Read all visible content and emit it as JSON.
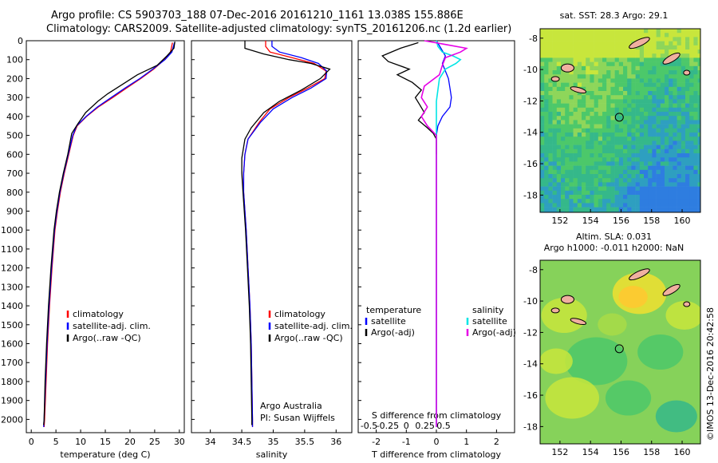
{
  "header": {
    "line1": "Argo profile: CS 5903703_188 07-Dec-2016 20161210_1161 13.038S 155.886E",
    "line2": "Climatology: CARS2009. Satellite-adjusted climatology: synTS_20161206.nc (1.2d earlier)"
  },
  "side_stamp": "©IMOS 13-Dec-2016 20:42:58",
  "colors": {
    "climatology": "#ff0000",
    "satellite": "#0000ff",
    "argo": "#000000",
    "sal_satellite": "#00e5e5",
    "sal_argo": "#e600e6"
  },
  "chart_data": [
    {
      "type": "line",
      "id": "temperature",
      "xlabel": "temperature (deg C)",
      "ylabel": "",
      "xlim": [
        -1,
        31
      ],
      "ylim": [
        2070,
        0
      ],
      "xticks": [
        0,
        5,
        10,
        15,
        20,
        25,
        30
      ],
      "yticks": [
        0,
        100,
        200,
        300,
        400,
        500,
        600,
        700,
        800,
        900,
        1000,
        1100,
        1200,
        1300,
        1400,
        1500,
        1600,
        1700,
        1800,
        1900,
        2000
      ],
      "legend": [
        "climatology",
        "satellite-adj. clim.",
        "Argo(..raw -QC)"
      ],
      "legend_position": "bottom-center",
      "series": [
        {
          "name": "climatology",
          "color": "#ff0000",
          "points": [
            [
              28.6,
              10
            ],
            [
              28.2,
              60
            ],
            [
              27.0,
              100
            ],
            [
              24.8,
              150
            ],
            [
              22.2,
              200
            ],
            [
              19.3,
              250
            ],
            [
              16.5,
              300
            ],
            [
              13.6,
              350
            ],
            [
              11.2,
              400
            ],
            [
              9.3,
              450
            ],
            [
              8.5,
              500
            ],
            [
              7.6,
              600
            ],
            [
              6.7,
              700
            ],
            [
              5.9,
              800
            ],
            [
              5.3,
              900
            ],
            [
              4.8,
              1000
            ],
            [
              4.2,
              1200
            ],
            [
              3.7,
              1400
            ],
            [
              3.3,
              1600
            ],
            [
              3.0,
              1800
            ],
            [
              2.7,
              2000
            ],
            [
              2.6,
              2040
            ]
          ]
        },
        {
          "name": "satellite-adj. clim.",
          "color": "#0000ff",
          "points": [
            [
              29.0,
              10
            ],
            [
              28.5,
              60
            ],
            [
              27.1,
              100
            ],
            [
              24.6,
              150
            ],
            [
              22.0,
              200
            ],
            [
              19.0,
              250
            ],
            [
              16.2,
              300
            ],
            [
              13.4,
              350
            ],
            [
              11.1,
              400
            ],
            [
              9.2,
              450
            ],
            [
              8.4,
              500
            ],
            [
              7.5,
              600
            ],
            [
              6.6,
              700
            ],
            [
              5.8,
              800
            ],
            [
              5.2,
              900
            ],
            [
              4.7,
              1000
            ],
            [
              4.1,
              1200
            ],
            [
              3.6,
              1400
            ],
            [
              3.2,
              1600
            ],
            [
              2.9,
              1800
            ],
            [
              2.6,
              2000
            ],
            [
              2.5,
              2040
            ]
          ]
        },
        {
          "name": "Argo(..raw -QC)",
          "color": "#000000",
          "points": [
            [
              29.1,
              5
            ],
            [
              28.9,
              40
            ],
            [
              27.5,
              80
            ],
            [
              25.5,
              130
            ],
            [
              21.5,
              180
            ],
            [
              18.5,
              230
            ],
            [
              15.5,
              280
            ],
            [
              13.5,
              320
            ],
            [
              11.0,
              380
            ],
            [
              9.4,
              440
            ],
            [
              8.2,
              490
            ],
            [
              7.4,
              600
            ],
            [
              6.5,
              700
            ],
            [
              5.7,
              800
            ],
            [
              5.1,
              900
            ],
            [
              4.6,
              1000
            ],
            [
              4.0,
              1200
            ],
            [
              3.5,
              1400
            ],
            [
              3.1,
              1600
            ],
            [
              2.8,
              1800
            ],
            [
              2.6,
              2000
            ],
            [
              2.5,
              2030
            ]
          ]
        }
      ]
    },
    {
      "type": "line",
      "id": "salinity",
      "xlabel": "salinity",
      "ylabel": "",
      "xlim": [
        33.7,
        36.25
      ],
      "ylim": [
        2070,
        0
      ],
      "xticks": [
        34,
        34.5,
        35,
        35.5,
        36
      ],
      "legend": [
        "climatology",
        "satellite-adj. clim.",
        "Argo(..raw -QC)"
      ],
      "legend_position": "bottom-right",
      "annotations": [
        "Argo Australia",
        "PI: Susan Wijffels"
      ],
      "series": [
        {
          "name": "climatology",
          "color": "#ff0000",
          "points": [
            [
              34.88,
              0
            ],
            [
              34.88,
              30
            ],
            [
              34.95,
              60
            ],
            [
              35.3,
              90
            ],
            [
              35.65,
              120
            ],
            [
              35.84,
              160
            ],
            [
              35.82,
              200
            ],
            [
              35.55,
              250
            ],
            [
              35.25,
              300
            ],
            [
              34.95,
              360
            ],
            [
              34.78,
              430
            ],
            [
              34.6,
              520
            ],
            [
              34.55,
              600
            ],
            [
              34.53,
              700
            ],
            [
              34.53,
              800
            ],
            [
              34.55,
              900
            ],
            [
              34.57,
              1000
            ],
            [
              34.6,
              1200
            ],
            [
              34.63,
              1400
            ],
            [
              34.65,
              1600
            ],
            [
              34.66,
              1800
            ],
            [
              34.67,
              2000
            ],
            [
              34.67,
              2040
            ]
          ]
        },
        {
          "name": "satellite-adj. clim.",
          "color": "#0000ff",
          "points": [
            [
              34.98,
              0
            ],
            [
              34.98,
              30
            ],
            [
              35.1,
              60
            ],
            [
              35.45,
              90
            ],
            [
              35.72,
              120
            ],
            [
              35.85,
              160
            ],
            [
              35.84,
              200
            ],
            [
              35.6,
              250
            ],
            [
              35.3,
              300
            ],
            [
              35.0,
              360
            ],
            [
              34.8,
              430
            ],
            [
              34.6,
              520
            ],
            [
              34.55,
              600
            ],
            [
              34.53,
              700
            ],
            [
              34.53,
              800
            ],
            [
              34.55,
              900
            ],
            [
              34.57,
              1000
            ],
            [
              34.6,
              1200
            ],
            [
              34.63,
              1400
            ],
            [
              34.65,
              1600
            ],
            [
              34.66,
              1800
            ],
            [
              34.67,
              2000
            ],
            [
              34.67,
              2040
            ]
          ]
        },
        {
          "name": "Argo(..raw -QC)",
          "color": "#000000",
          "points": [
            [
              34.55,
              0
            ],
            [
              34.55,
              40
            ],
            [
              34.85,
              70
            ],
            [
              35.25,
              100
            ],
            [
              35.6,
              120
            ],
            [
              35.9,
              150
            ],
            [
              35.75,
              200
            ],
            [
              35.45,
              260
            ],
            [
              35.1,
              320
            ],
            [
              34.85,
              380
            ],
            [
              34.65,
              460
            ],
            [
              34.55,
              520
            ],
            [
              34.5,
              620
            ],
            [
              34.5,
              700
            ],
            [
              34.52,
              800
            ],
            [
              34.54,
              900
            ],
            [
              34.56,
              1000
            ],
            [
              34.59,
              1200
            ],
            [
              34.62,
              1400
            ],
            [
              34.64,
              1600
            ],
            [
              34.65,
              1800
            ],
            [
              34.66,
              2000
            ],
            [
              34.66,
              2030
            ]
          ]
        }
      ]
    },
    {
      "type": "line",
      "id": "difference",
      "xlabel": "T difference from climatology",
      "xlabel_top": "S difference from climatology",
      "ylabel": "",
      "xlim": [
        -2.6,
        2.6
      ],
      "ylim": [
        2070,
        0
      ],
      "xticks": [
        -2,
        -1,
        0,
        1,
        2
      ],
      "xticks_top": [
        "-0.5",
        "-0.25",
        "0",
        "0.25",
        "0.5"
      ],
      "legend_headers": [
        "temperature",
        "salinity"
      ],
      "legend": [
        "satellite",
        "Argo(-adj)",
        "satellite",
        "Argo(-adj)"
      ],
      "legend_position": "bottom",
      "series": [
        {
          "name": "satellite",
          "group": "temperature",
          "color": "#0000ff",
          "points": [
            [
              0.0,
              0
            ],
            [
              0.15,
              40
            ],
            [
              0.3,
              80
            ],
            [
              0.2,
              120
            ],
            [
              0.3,
              160
            ],
            [
              0.4,
              200
            ],
            [
              0.45,
              250
            ],
            [
              0.5,
              300
            ],
            [
              0.45,
              350
            ],
            [
              0.2,
              400
            ],
            [
              0.05,
              450
            ],
            [
              0.0,
              500
            ],
            [
              0.0,
              600
            ],
            [
              0.0,
              1000
            ],
            [
              0.0,
              2040
            ]
          ]
        },
        {
          "name": "Argo(-adj)",
          "group": "temperature",
          "color": "#000000",
          "points": [
            [
              -0.6,
              10
            ],
            [
              -1.2,
              40
            ],
            [
              -1.8,
              80
            ],
            [
              -1.6,
              110
            ],
            [
              -0.9,
              150
            ],
            [
              -1.3,
              180
            ],
            [
              -0.8,
              220
            ],
            [
              -0.5,
              260
            ],
            [
              -0.7,
              300
            ],
            [
              -0.55,
              340
            ],
            [
              -0.4,
              380
            ],
            [
              -0.6,
              420
            ],
            [
              -0.3,
              460
            ],
            [
              -0.1,
              490
            ],
            [
              0.0,
              520
            ],
            [
              0.0,
              600
            ]
          ]
        },
        {
          "name": "satellite",
          "group": "salinity",
          "color": "#00e5e5",
          "points": [
            [
              0.0,
              0
            ],
            [
              0.05,
              30
            ],
            [
              0.2,
              60
            ],
            [
              0.55,
              80
            ],
            [
              0.8,
              100
            ],
            [
              0.65,
              120
            ],
            [
              0.3,
              150
            ],
            [
              0.1,
              200
            ],
            [
              0.05,
              260
            ],
            [
              0.0,
              320
            ],
            [
              0.0,
              600
            ],
            [
              0.0,
              2040
            ]
          ]
        },
        {
          "name": "Argo(-adj)",
          "group": "salinity",
          "color": "#e600e6",
          "points": [
            [
              -0.4,
              0
            ],
            [
              0.3,
              20
            ],
            [
              1.0,
              40
            ],
            [
              0.8,
              60
            ],
            [
              0.3,
              90
            ],
            [
              0.2,
              130
            ],
            [
              0.1,
              180
            ],
            [
              -0.4,
              240
            ],
            [
              -0.5,
              300
            ],
            [
              -0.3,
              350
            ],
            [
              -0.5,
              400
            ],
            [
              -0.3,
              450
            ],
            [
              0.0,
              500
            ],
            [
              0.0,
              600
            ],
            [
              0.0,
              2040
            ]
          ]
        }
      ]
    },
    {
      "type": "heatmap",
      "id": "sst_map",
      "title": "sat. SST: 28.3  Argo: 29.1",
      "xticks": [
        152,
        154,
        156,
        158,
        160
      ],
      "yticks": [
        -8,
        -10,
        -12,
        -14,
        -16,
        -18
      ],
      "xlim": [
        150.7,
        161.2
      ],
      "ylim": [
        -19.1,
        -7.4
      ],
      "marker": {
        "lon": 155.886,
        "lat": -13.038
      }
    },
    {
      "type": "heatmap",
      "id": "sla_map",
      "title": "Altim. SLA: 0.031",
      "subtitle": "Argo h1000: -0.011 h2000: NaN",
      "xticks": [
        152,
        154,
        156,
        158,
        160
      ],
      "yticks": [
        -8,
        -10,
        -12,
        -14,
        -16,
        -18
      ],
      "xlim": [
        150.7,
        161.2
      ],
      "ylim": [
        -19.1,
        -7.4
      ],
      "marker": {
        "lon": 155.886,
        "lat": -13.038
      }
    }
  ]
}
